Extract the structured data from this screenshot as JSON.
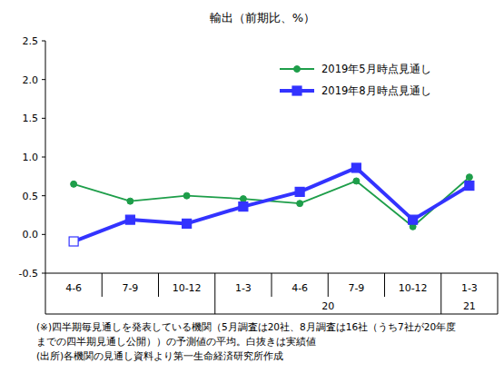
{
  "chart_data": {
    "type": "line",
    "title": "輸出（前期比、%）",
    "categories": [
      "4-6",
      "7-9",
      "10-12",
      "1-3",
      "4-6",
      "7-9",
      "10-12",
      "1-3"
    ],
    "annotations": [
      "20",
      "21"
    ],
    "series": [
      {
        "name": "2019年5月時点見通し",
        "color": "#1e9e4a",
        "marker": "circle",
        "line_style": "solid",
        "values": [
          0.65,
          0.43,
          0.5,
          0.46,
          0.4,
          0.69,
          0.1,
          0.74
        ]
      },
      {
        "name": "2019年8月時点見通し",
        "color": "#3333ff",
        "marker": "square",
        "line_style": "solid",
        "values": [
          -0.09,
          0.19,
          0.14,
          0.36,
          0.55,
          0.86,
          0.19,
          0.63
        ]
      }
    ],
    "ylim": [
      -0.5,
      2.5
    ],
    "yticks": [
      -0.5,
      {
        "value": 0,
        "label": "0.0"
      },
      0.5,
      {
        "value": 1,
        "label": "1.0"
      },
      1.5,
      {
        "value": 2,
        "label": "2.0"
      },
      2.5
    ],
    "grid": false,
    "legend": "top-right",
    "notes": [
      "(※)四半期毎見通しを発表している機関（5月調査は20社、8月調査は16社（うち7社が20年度",
      "までの四半期見通し公開））の予測値の平均。白抜きは実績値",
      "(出所)各機関の見通し資料より第一生命経済研究所作成"
    ]
  }
}
